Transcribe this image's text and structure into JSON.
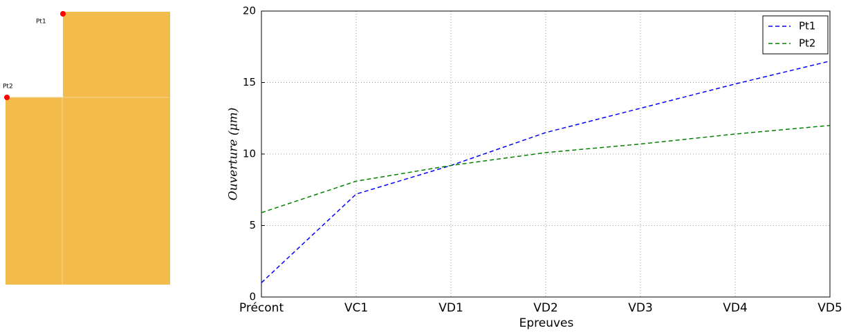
{
  "diagram": {
    "points": [
      {
        "label": "Pt1"
      },
      {
        "label": "Pt2"
      }
    ]
  },
  "chart_data": {
    "type": "line",
    "x_label": "Epreuves",
    "y_label": "Ouverture (μm)",
    "categories": [
      "Précont",
      "VC1",
      "VD1",
      "VD2",
      "VD3",
      "VD4",
      "VD5"
    ],
    "series": [
      {
        "name": "Pt1",
        "color": "#0000ff",
        "values": [
          1.0,
          7.2,
          9.2,
          11.5,
          13.2,
          14.9,
          16.5
        ]
      },
      {
        "name": "Pt2",
        "color": "#008000",
        "values": [
          5.9,
          8.1,
          9.2,
          10.1,
          10.7,
          11.4,
          12.0
        ]
      }
    ],
    "ylim": [
      0,
      20
    ],
    "yticks": [
      0,
      5,
      10,
      15,
      20
    ],
    "grid": true,
    "legend": "upper right"
  }
}
